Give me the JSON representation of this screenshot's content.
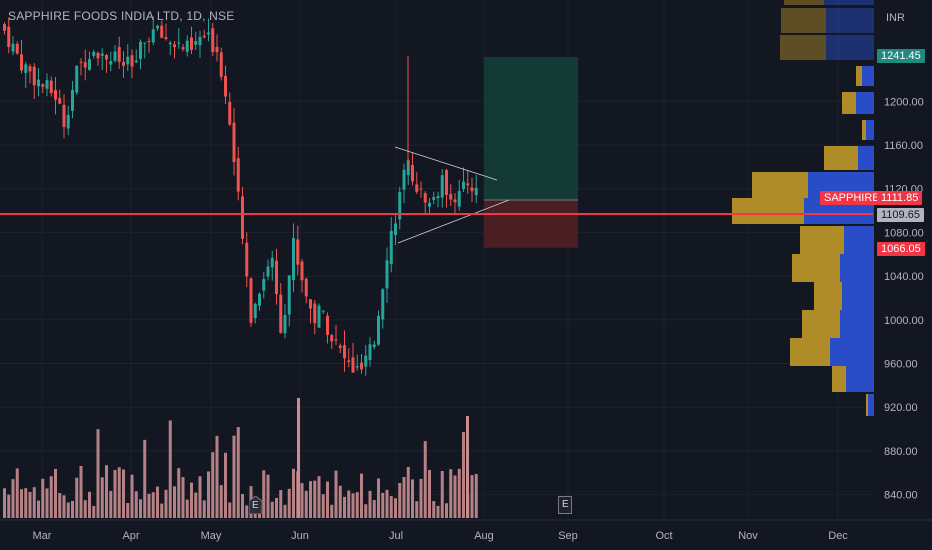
{
  "header": {
    "symbol_line": "SAPPHIRE FOODS INDIA LTD, 1D, NSE"
  },
  "price_axis": {
    "currency": "INR",
    "ticks": [
      "1200.00",
      "1160.00",
      "1120.00",
      "1080.00",
      "1040.00",
      "1000.00",
      "960.00",
      "920.00",
      "880.00",
      "840.00"
    ]
  },
  "time_axis": {
    "months": [
      "Mar",
      "Apr",
      "May",
      "Jun",
      "Jul",
      "Aug",
      "Sep",
      "Oct",
      "Nov",
      "Dec"
    ]
  },
  "price_tags": {
    "target": "1241.45",
    "symbol": "SAPPHIRE",
    "last": "1111.85",
    "horizontal_line": "1109.65",
    "stop": "1066.05"
  },
  "events": {
    "earnings_label": "E"
  },
  "colors": {
    "up": "#26a69a",
    "down": "#ef5350",
    "bg": "#131722",
    "grid": "#1e222d",
    "hline": "#f23645",
    "profit_zone": "#143a36",
    "loss_zone": "#4a1f24",
    "vp_up": "#2a4fd1",
    "vp_down": "#b8922a",
    "volume": "#c98d8f"
  },
  "chart_data": {
    "type": "candlestick",
    "title": "SAPPHIRE FOODS INDIA LTD, 1D, NSE",
    "ylim": [
      820,
      1290
    ],
    "x_labels": [
      "Mar",
      "Apr",
      "May",
      "Jun",
      "Jul",
      "Aug",
      "Sep",
      "Oct",
      "Nov",
      "Dec"
    ],
    "horizontal_line_price": 1109.65,
    "last_price": 1111.85,
    "position_tool": {
      "entry": 1109.65,
      "target": 1241.45,
      "stop": 1066.05
    }
  }
}
